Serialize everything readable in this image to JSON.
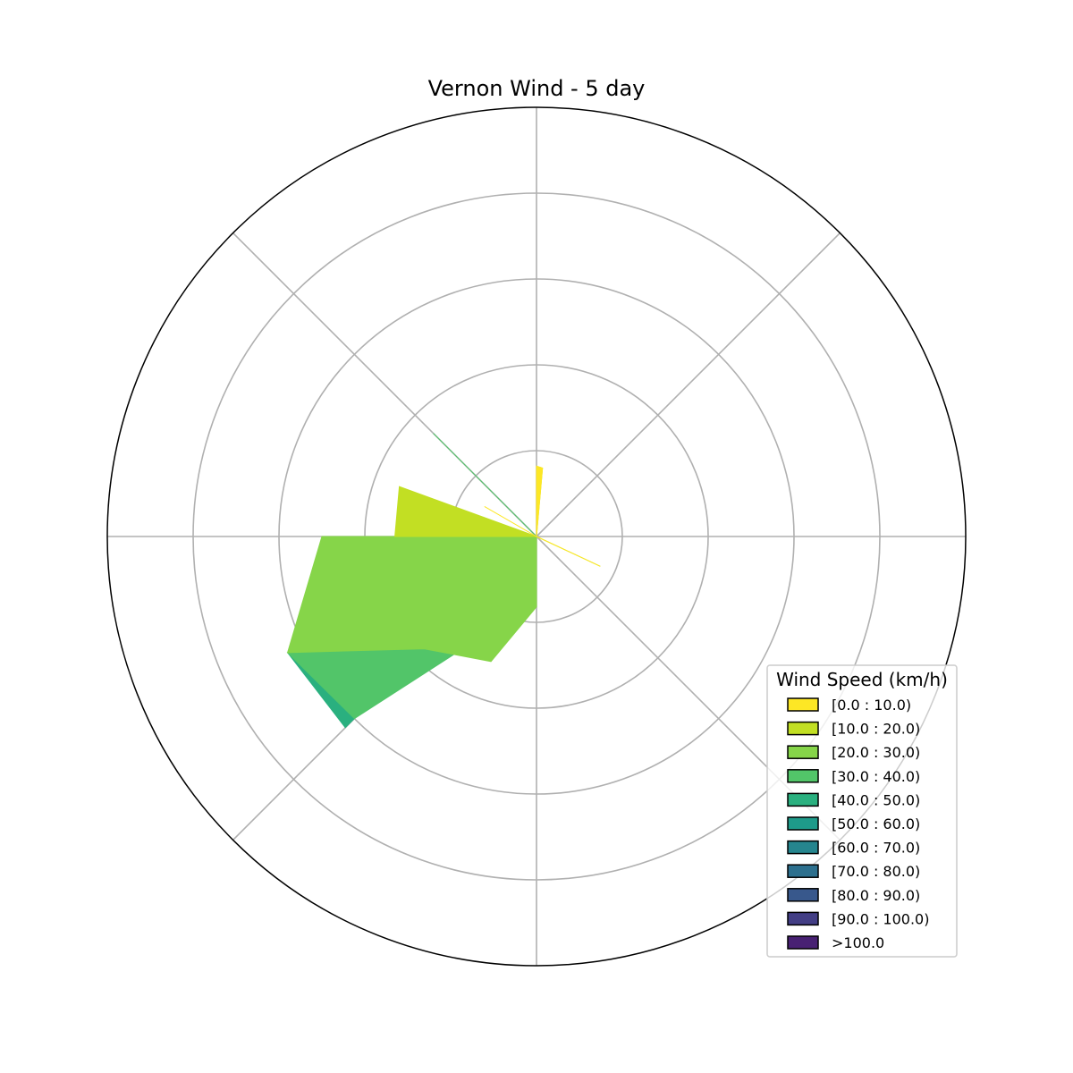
{
  "chart_data": {
    "type": "windrose",
    "title": "Vernon Wind - 5 day",
    "legend": {
      "title": "Wind Speed (km/h)",
      "placement": "lower-right",
      "entries": [
        {
          "label": "[0.0 : 10.0)",
          "color": "#fde725"
        },
        {
          "label": "[10.0 : 20.0)",
          "color": "#c2df23"
        },
        {
          "label": "[20.0 : 30.0)",
          "color": "#86d549"
        },
        {
          "label": "[30.0 : 40.0)",
          "color": "#52c569"
        },
        {
          "label": "[40.0 : 50.0)",
          "color": "#2ab07f"
        },
        {
          "label": "[50.0 : 60.0)",
          "color": "#1e9b8a"
        },
        {
          "label": "[60.0 : 70.0)",
          "color": "#25858e"
        },
        {
          "label": "[70.0 : 80.0)",
          "color": "#2d708e"
        },
        {
          "label": "[80.0 : 90.0)",
          "color": "#38588c"
        },
        {
          "label": "[90.0 : 100.0)",
          "color": "#433e85"
        },
        {
          "label": ">100.0",
          "color": "#482173"
        }
      ]
    },
    "grid": true,
    "theta_direction": "clockwise",
    "theta_zero": "north",
    "spokes_deg": [
      0,
      45,
      90,
      135,
      180,
      225,
      270,
      315
    ],
    "rlim": [
      0,
      5
    ],
    "rings": [
      1,
      2,
      3,
      4,
      5
    ],
    "directions_deg": [
      0,
      5,
      10,
      115,
      180,
      200,
      225,
      245,
      270,
      290,
      300,
      315
    ],
    "cumulative_radii": [
      [
        0.82,
        0.8,
        0.0,
        0.82,
        0.0,
        0.0,
        0.0,
        0.0,
        0.0,
        0.0,
        0.7,
        0.0
      ],
      [
        0.82,
        0.8,
        0.0,
        0.82,
        0.0,
        0.0,
        0.0,
        0.0,
        1.65,
        1.7,
        0.0,
        0.0
      ],
      [
        0.0,
        0.0,
        0.0,
        0.0,
        0.82,
        1.55,
        1.85,
        3.2,
        2.5,
        0.0,
        0.0,
        0.0
      ],
      [
        0.0,
        0.0,
        0.0,
        0.0,
        0.0,
        1.05,
        3.0,
        3.2,
        0.0,
        0.0,
        0.0,
        1.7
      ],
      [
        0.0,
        0.0,
        0.0,
        0.0,
        0.0,
        0.0,
        3.15,
        3.2,
        0.0,
        0.0,
        0.0,
        0.0
      ],
      [
        0.0,
        0.0,
        0.0,
        0.0,
        0.0,
        0.0,
        0.0,
        0.0,
        0.0,
        0.0,
        0.0,
        0.0
      ],
      [
        0.0,
        0.0,
        0.0,
        0.0,
        0.0,
        0.0,
        0.0,
        0.0,
        0.0,
        0.0,
        0.0,
        0.0
      ],
      [
        0.0,
        0.0,
        0.0,
        0.0,
        0.0,
        0.0,
        0.0,
        0.0,
        0.0,
        0.0,
        0.0,
        0.0
      ],
      [
        0.0,
        0.0,
        0.0,
        0.0,
        0.0,
        0.0,
        0.0,
        0.0,
        0.0,
        0.0,
        0.0,
        0.0
      ],
      [
        0.0,
        0.0,
        0.0,
        0.0,
        0.0,
        0.0,
        0.0,
        0.0,
        0.0,
        0.0,
        0.0,
        0.0
      ],
      [
        0.0,
        0.0,
        0.0,
        0.0,
        0.0,
        0.0,
        0.0,
        0.0,
        0.0,
        0.0,
        0.0,
        0.0
      ]
    ]
  }
}
